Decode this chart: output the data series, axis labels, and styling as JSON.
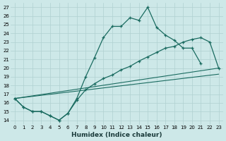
{
  "xlabel": "Humidex (Indice chaleur)",
  "xlim": [
    -0.5,
    23.5
  ],
  "ylim": [
    13.5,
    27.5
  ],
  "xticks": [
    0,
    1,
    2,
    3,
    4,
    5,
    6,
    7,
    8,
    9,
    10,
    11,
    12,
    13,
    14,
    15,
    16,
    17,
    18,
    19,
    20,
    21,
    22,
    23
  ],
  "yticks": [
    14,
    15,
    16,
    17,
    18,
    19,
    20,
    21,
    22,
    23,
    24,
    25,
    26,
    27
  ],
  "bg_color": "#cde8e8",
  "line_color": "#1a6b60",
  "grid_color": "#b0d0d0",
  "curve1": {
    "x": [
      0,
      1,
      2,
      3,
      4,
      5,
      6,
      7,
      8,
      9,
      10,
      11,
      12,
      13,
      14,
      15,
      16,
      17,
      18,
      19,
      20,
      21
    ],
    "y": [
      16.5,
      15.5,
      15.0,
      15.0,
      14.5,
      14.0,
      14.8,
      16.5,
      19.0,
      21.2,
      23.5,
      24.8,
      24.8,
      25.8,
      25.5,
      27.0,
      24.7,
      23.8,
      23.2,
      22.3,
      22.3,
      20.5
    ]
  },
  "curve2": {
    "x": [
      0,
      1,
      2,
      3,
      4,
      5,
      6,
      7,
      8,
      9,
      10,
      11,
      12,
      13,
      14,
      15,
      16,
      17,
      18,
      19,
      20,
      21,
      22,
      23
    ],
    "y": [
      16.5,
      15.5,
      15.0,
      15.0,
      14.5,
      14.0,
      14.8,
      16.3,
      17.5,
      18.2,
      18.8,
      19.2,
      19.8,
      20.2,
      20.8,
      21.3,
      21.8,
      22.3,
      22.5,
      23.0,
      23.3,
      23.5,
      23.0,
      20.0
    ]
  },
  "line_straight1": {
    "x": [
      0,
      23
    ],
    "y": [
      16.5,
      20.0
    ]
  },
  "line_straight2": {
    "x": [
      0,
      23
    ],
    "y": [
      16.5,
      19.3
    ]
  }
}
